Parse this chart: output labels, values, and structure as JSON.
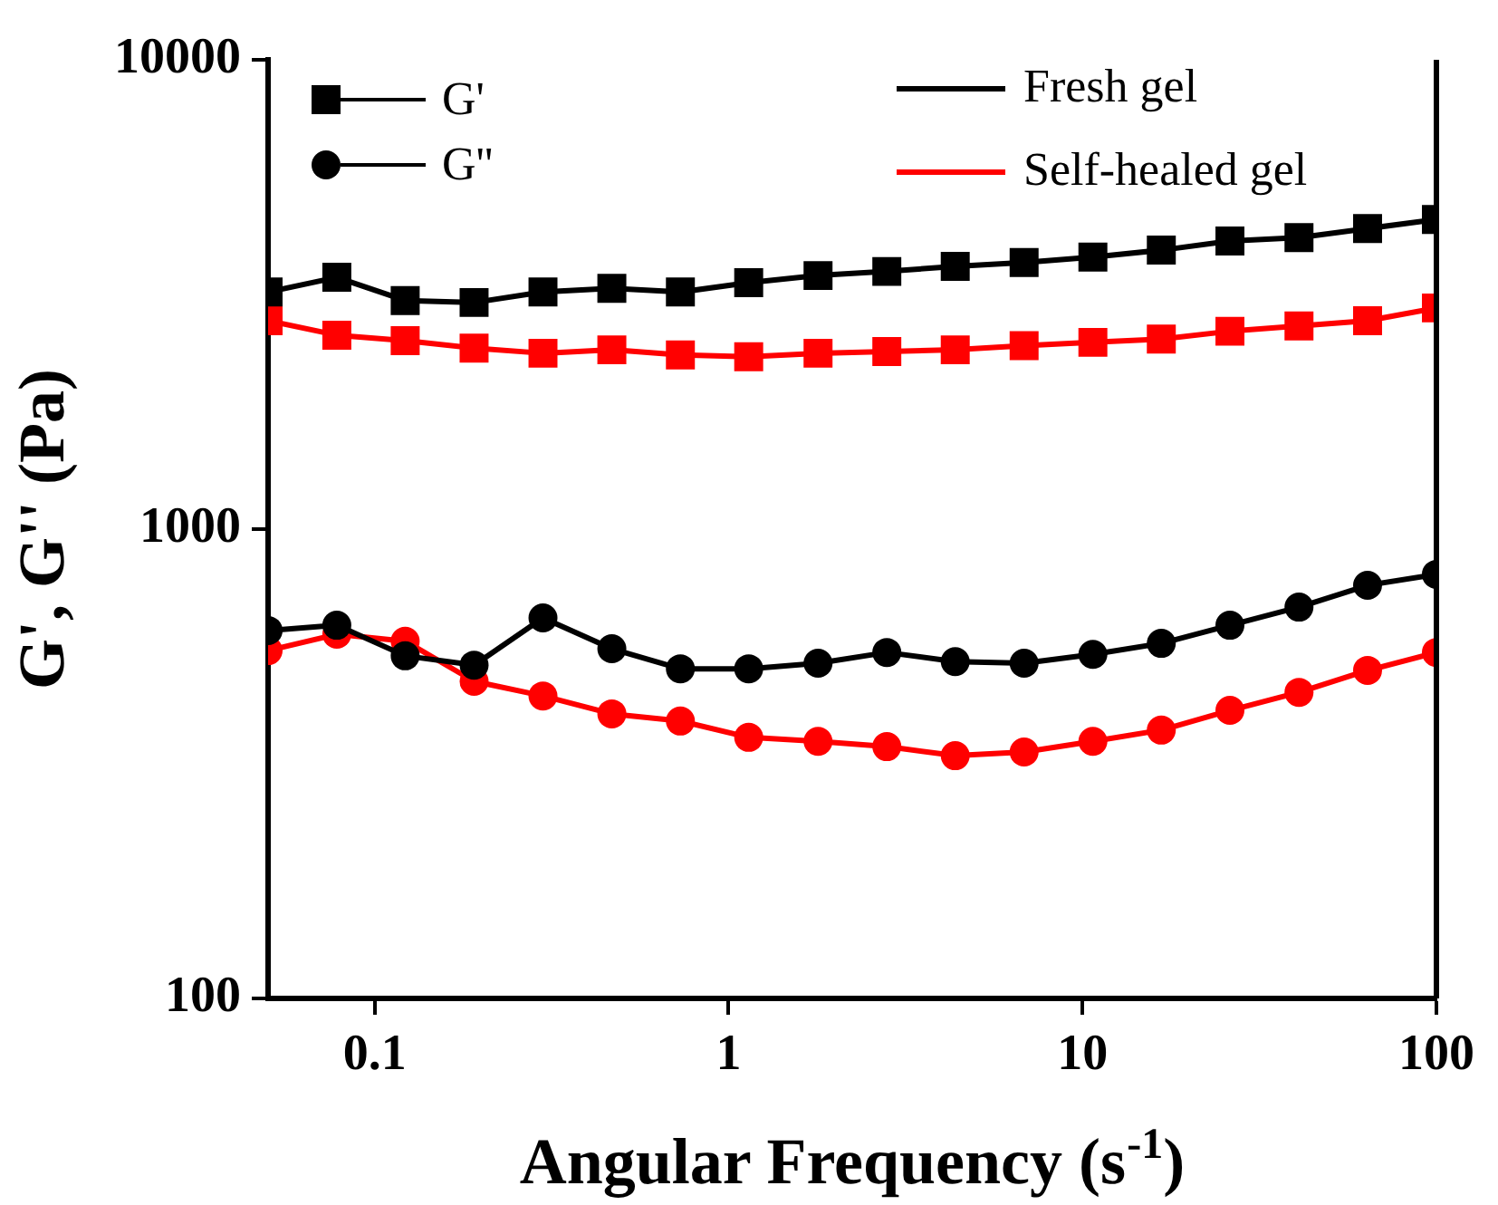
{
  "chart_data": {
    "type": "line",
    "xlabel": "Angular Frequency (s$^{-1}$)",
    "ylabel": "G', G'' (Pa)",
    "log": "xy",
    "xlim": [
      0.05,
      100
    ],
    "xticks": [
      0.1,
      1,
      10,
      100
    ],
    "ylim": [
      100,
      10000
    ],
    "yticks": [
      100,
      1000,
      10000
    ],
    "grid": false,
    "legend": "top",
    "line_style": "solid",
    "annotations": [
      "Fresh gel",
      "Self-healed gel"
    ],
    "x": [
      0.05,
      0.0782,
      0.122,
      0.191,
      0.299,
      0.468,
      0.731,
      1.14,
      1.79,
      2.8,
      4.37,
      6.84,
      10.7,
      16.7,
      26.1,
      40.9,
      63.9,
      100
    ],
    "series": [
      {
        "name": "G'",
        "color": "#000000",
        "marker": "square",
        "values": [
          3200,
          3440,
          3070,
          3040,
          3200,
          3260,
          3200,
          3350,
          3470,
          3540,
          3630,
          3700,
          3800,
          3930,
          4110,
          4180,
          4370,
          4570
        ]
      },
      {
        "color": "#ff0000",
        "marker": "square",
        "values": [
          2780,
          2590,
          2520,
          2430,
          2370,
          2410,
          2350,
          2330,
          2370,
          2390,
          2410,
          2460,
          2500,
          2540,
          2640,
          2710,
          2780,
          2960
        ]
      },
      {
        "name": "G''",
        "color": "#000000",
        "marker": "circle",
        "values": [
          608,
          624,
          537,
          513,
          647,
          556,
          504,
          504,
          518,
          546,
          522,
          518,
          541,
          571,
          624,
          682,
          759,
          801
        ]
      },
      {
        "color": "#ff0000",
        "marker": "circle",
        "values": [
          551,
          597,
          577,
          474,
          441,
          404,
          390,
          360,
          353,
          344,
          329,
          335,
          353,
          373,
          411,
          449,
          500,
          546
        ]
      }
    ]
  }
}
